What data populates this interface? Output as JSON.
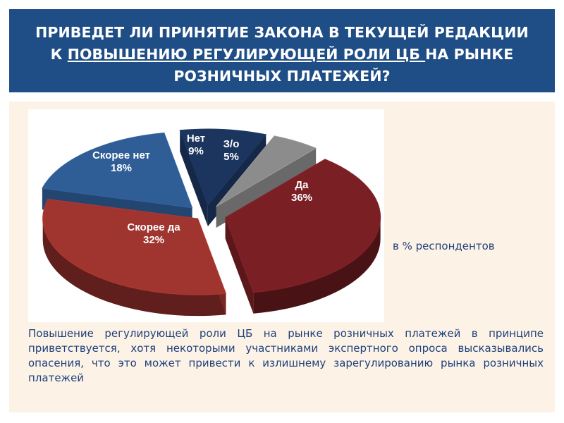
{
  "header": {
    "title_part1": "ПРИВЕДЕТ ЛИ ПРИНЯТИЕ ЗАКОНА В ТЕКУЩЕЙ РЕДАКЦИИ К ",
    "title_underlined": "ПОВЫШЕНИЮ РЕГУЛИРУЮЩЕЙ РОЛИ ЦБ ",
    "title_part2": "НА РЫНКЕ РОЗНИЧНЫХ ПЛАТЕЖЕЙ?"
  },
  "chart_data": {
    "type": "pie",
    "title": "",
    "exploded": true,
    "three_d": true,
    "slices": [
      {
        "label": "Да",
        "value": 36,
        "value_label": "36%",
        "color": "#7a1f24"
      },
      {
        "label": "Скорее да",
        "value": 32,
        "value_label": "32%",
        "color": "#a0342f"
      },
      {
        "label": "Скорее нет",
        "value": 18,
        "value_label": "18%",
        "color": "#2f5d95"
      },
      {
        "label": "Нет",
        "value": 9,
        "value_label": "9%",
        "color": "#1c355e"
      },
      {
        "label": "З/о",
        "value": 5,
        "value_label": "5%",
        "color": "#8c8c8c"
      }
    ]
  },
  "note": "в % респондентов",
  "summary": "Повышение регулирующей роли ЦБ на рынке розничных платежей в принципе приветствуется, хотя некоторыми участниками экспертного опроса высказывались опасения, что это может привести к излишнему зарегулированию рынка розничных платежей"
}
